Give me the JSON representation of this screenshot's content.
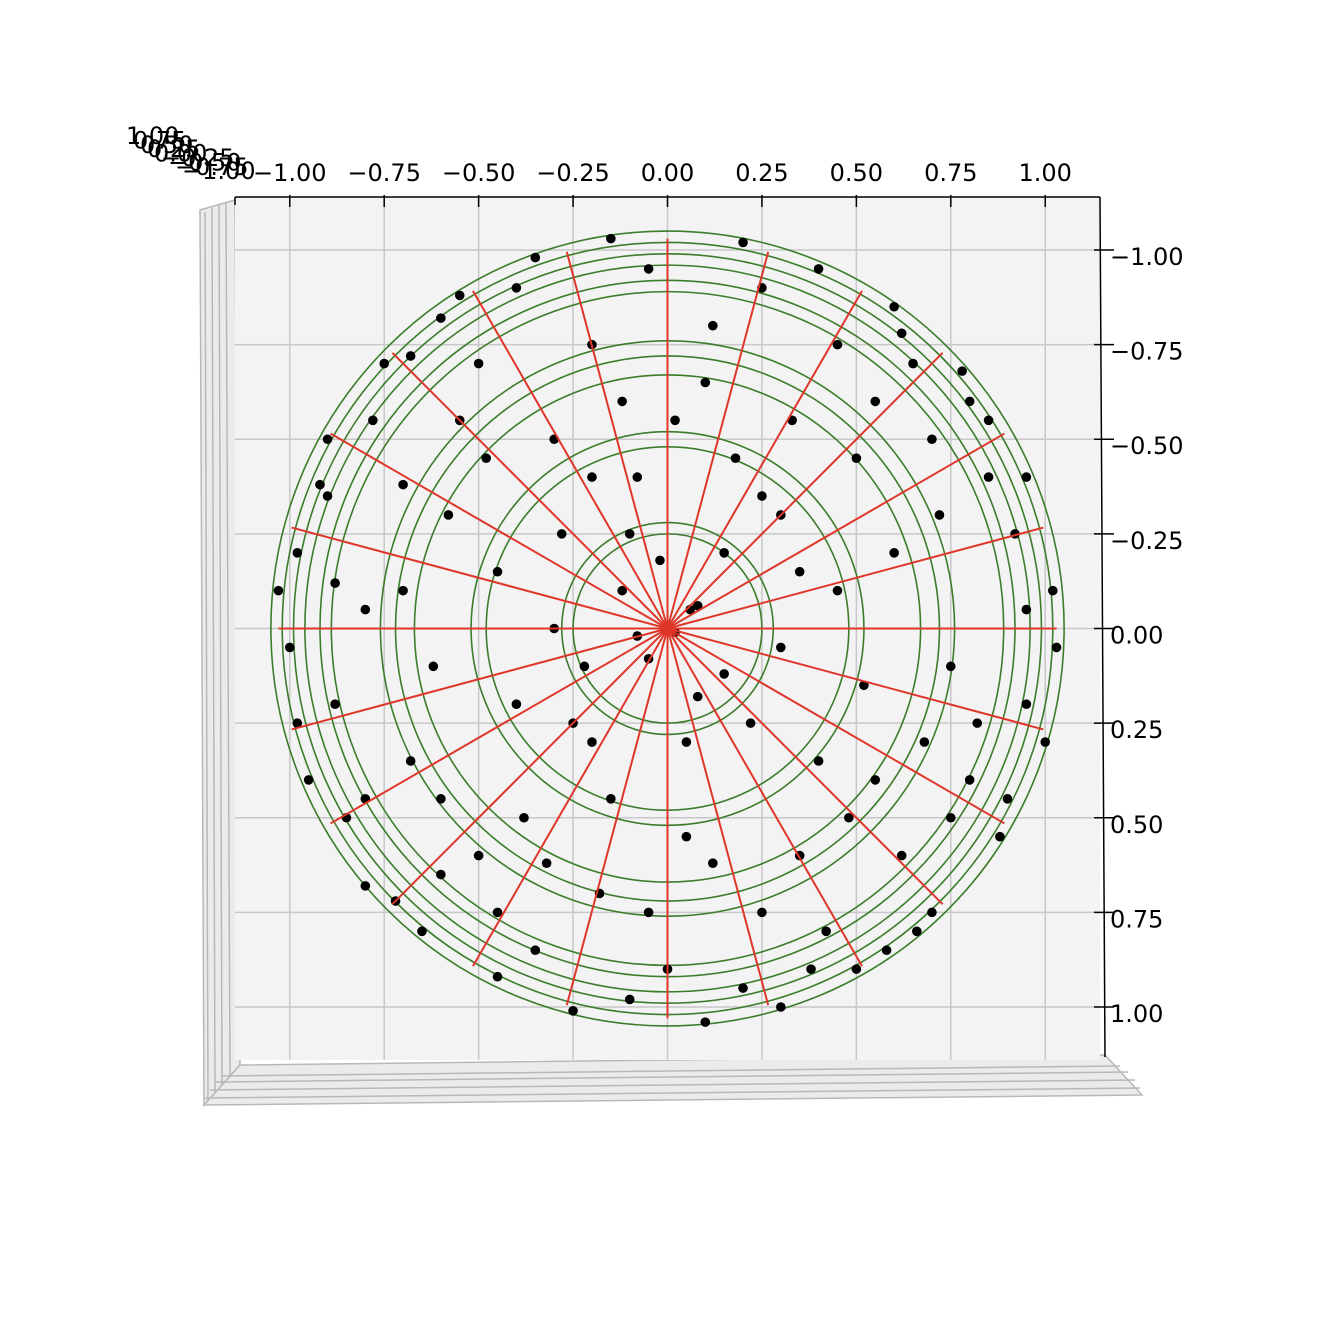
{
  "chart_data": {
    "type": "scatter",
    "xlim": [
      -1.145,
      1.145
    ],
    "ylim": [
      -1.14,
      1.14
    ],
    "yaxis_inverted": true,
    "grid": true,
    "xticks": [
      {
        "value": -1,
        "label": "−1.00"
      },
      {
        "value": -0.75,
        "label": "−0.75"
      },
      {
        "value": -0.5,
        "label": "−0.50"
      },
      {
        "value": -0.25,
        "label": "−0.25"
      },
      {
        "value": 0,
        "label": "0.00"
      },
      {
        "value": 0.25,
        "label": "0.25"
      },
      {
        "value": 0.5,
        "label": "0.50"
      },
      {
        "value": 0.75,
        "label": "0.75"
      },
      {
        "value": 1,
        "label": "1.00"
      }
    ],
    "yticks": [
      {
        "value": -1,
        "label": "−1.00"
      },
      {
        "value": -0.75,
        "label": "−0.75"
      },
      {
        "value": -0.5,
        "label": "−0.50"
      },
      {
        "value": -0.25,
        "label": "−0.25"
      },
      {
        "value": 0,
        "label": "0.00"
      },
      {
        "value": 0.25,
        "label": "0.25"
      },
      {
        "value": 0.5,
        "label": "0.50"
      },
      {
        "value": 0.75,
        "label": "0.75"
      },
      {
        "value": 1,
        "label": "1.00"
      }
    ],
    "zticks": [
      {
        "value": 1,
        "label": "1.00"
      },
      {
        "value": 0.75,
        "label": "0.75"
      },
      {
        "value": 0.5,
        "label": "0.50"
      },
      {
        "value": 0.25,
        "label": "0.25"
      },
      {
        "value": 0,
        "label": "0.00"
      },
      {
        "value": -0.25,
        "label": "−0.25"
      },
      {
        "value": -0.5,
        "label": "−0.50"
      },
      {
        "value": -0.75,
        "label": "−0.75"
      },
      {
        "value": -1,
        "label": "−1.00"
      }
    ],
    "rings": {
      "color": "#3a7d2a",
      "radii": [
        0.25,
        0.28,
        0.48,
        0.52,
        0.67,
        0.72,
        0.76,
        0.89,
        0.92,
        0.96,
        0.99,
        1.02,
        1.05
      ]
    },
    "spokes": {
      "color": "#e0362a",
      "length": 1.03,
      "angles": [
        0,
        15,
        30,
        45,
        60,
        75,
        90,
        105,
        120,
        135,
        150,
        165,
        180,
        195,
        210,
        225,
        240,
        255,
        270,
        285,
        300,
        315,
        330,
        345
      ]
    },
    "series": [
      {
        "color": "#000000",
        "x": [
          0.02,
          -0.05,
          0.08,
          -0.12,
          0.15,
          -0.2,
          0.25,
          -0.3,
          0.35,
          -0.4,
          0.45,
          -0.5,
          0.55,
          -0.6,
          0.65,
          -0.7,
          0.75,
          -0.8,
          0.85,
          -0.9,
          0.95,
          -1.0,
          1.02,
          -0.98,
          0.9,
          -0.85,
          0.8,
          -0.75,
          0.7,
          -0.65,
          0.6,
          -0.55,
          0.5,
          -0.45,
          0.4,
          -0.35,
          0.3,
          -0.25,
          0.2,
          -0.15,
          0.1,
          -0.08,
          0.05,
          0.12,
          -0.18,
          0.22,
          -0.28,
          0.33,
          -0.38,
          0.42,
          -0.48,
          0.52,
          -0.58,
          0.62,
          -0.68,
          0.72,
          -0.78,
          0.82,
          -0.88,
          0.92,
          1.0,
          -1.03,
          0.95,
          -0.95,
          0.88,
          -0.9,
          0.78,
          -0.72,
          0.66,
          -0.6,
          0.15,
          -0.22,
          0.3,
          -0.1,
          0.05,
          -0.3,
          0.18,
          -0.45,
          0.4,
          -0.15,
          0.6,
          -0.62,
          0.25,
          -0.35,
          0.1,
          -0.05,
          0.45,
          -0.2,
          0.75,
          -0.8,
          0.0,
          0.02,
          -0.5,
          0.5,
          0.68,
          -0.7,
          0.35,
          -0.25,
          0.08,
          -0.12,
          0.58,
          -0.8,
          0.85,
          -0.98,
          1.03,
          -0.4,
          0.25,
          -0.6,
          0.55,
          -0.05,
          0.95,
          -0.88,
          0.2,
          -0.1,
          0.7,
          -0.45,
          0.3,
          -0.2,
          0.12,
          -0.32,
          0.48,
          -0.55,
          0.8,
          -0.68,
          0.38,
          -0.92,
          0.62,
          -0.02,
          0.06,
          -0.08
        ],
        "y": [
          0.01,
          0.08,
          -0.06,
          -0.1,
          0.12,
          0.3,
          -0.35,
          -0.5,
          0.6,
          0.2,
          -0.1,
          -0.7,
          0.4,
          0.65,
          -0.7,
          -0.1,
          0.5,
          0.45,
          -0.4,
          -0.35,
          0.2,
          0.05,
          -0.1,
          -0.2,
          0.45,
          0.5,
          -0.6,
          -0.7,
          0.75,
          0.8,
          -0.85,
          -0.88,
          0.9,
          0.92,
          -0.95,
          -0.98,
          1.0,
          1.01,
          -1.02,
          -1.03,
          1.04,
          -0.4,
          0.55,
          -0.8,
          0.7,
          0.25,
          -0.25,
          -0.55,
          0.5,
          0.8,
          -0.45,
          0.15,
          -0.3,
          0.6,
          0.35,
          -0.3,
          -0.55,
          0.25,
          0.2,
          -0.25,
          0.3,
          -0.1,
          -0.4,
          0.4,
          0.55,
          -0.5,
          -0.68,
          0.72,
          0.8,
          -0.82,
          -0.2,
          0.1,
          0.05,
          -0.25,
          0.3,
          0.0,
          -0.45,
          -0.15,
          0.35,
          0.45,
          -0.2,
          0.1,
          0.75,
          0.85,
          -0.65,
          -0.95,
          -0.75,
          -0.75,
          0.1,
          -0.05,
          0.9,
          -0.55,
          0.6,
          -0.45,
          0.3,
          -0.38,
          -0.15,
          0.25,
          0.18,
          -0.6,
          0.85,
          0.68,
          -0.55,
          0.25,
          0.05,
          -0.9,
          -0.9,
          0.45,
          -0.6,
          0.75,
          -0.05,
          -0.12,
          0.95,
          0.98,
          -0.5,
          0.75,
          -0.3,
          -0.4,
          0.62,
          0.62,
          0.5,
          -0.55,
          0.4,
          -0.72,
          0.9,
          -0.38,
          -0.78,
          -0.18,
          -0.05,
          0.02
        ]
      }
    ]
  }
}
